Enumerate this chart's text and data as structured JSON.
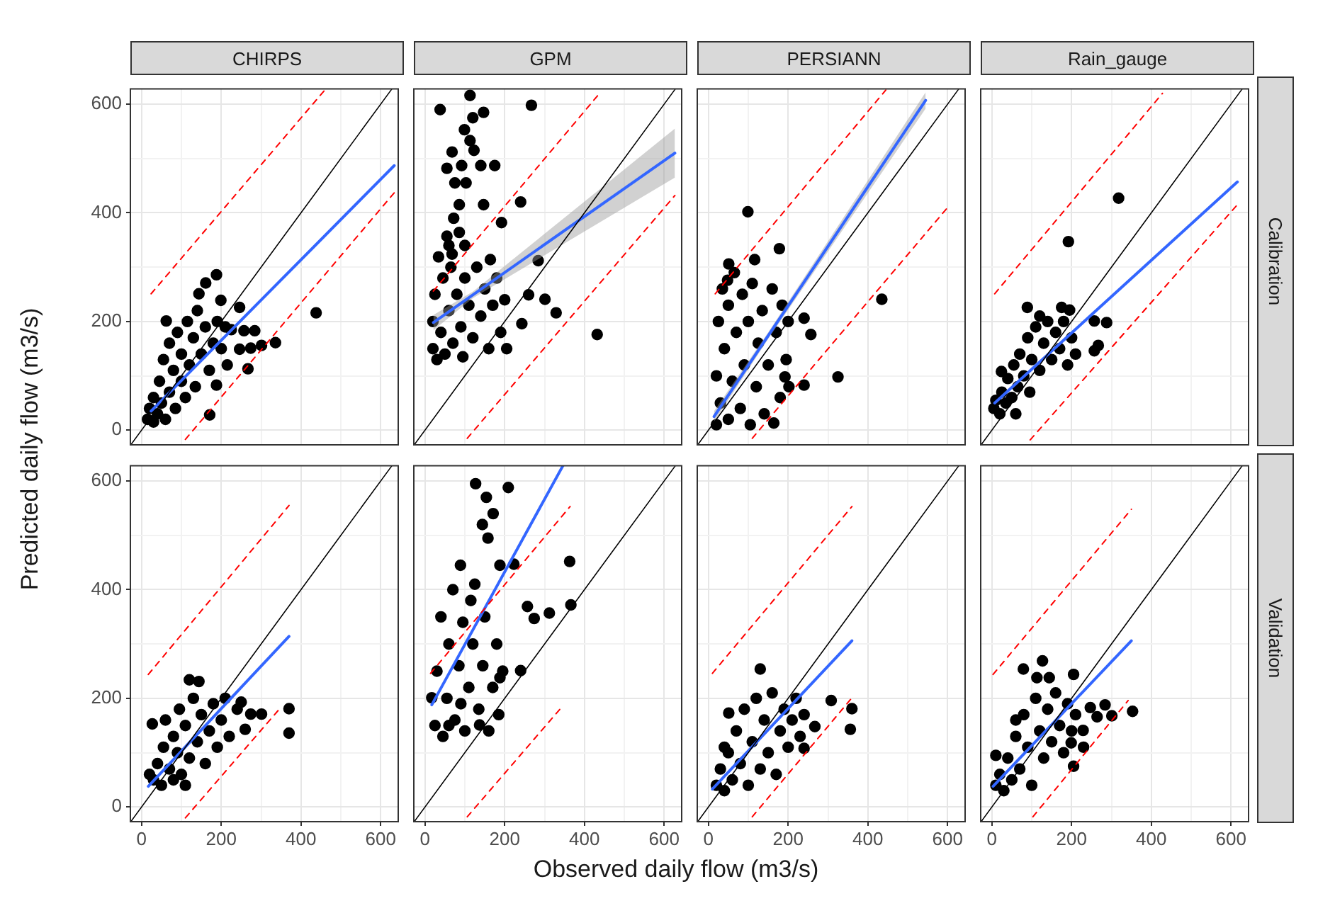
{
  "chart_data": [
    {
      "type": "scatter",
      "title": "CHIRPS",
      "ylabel": "Predicted daily flow (m3/s)",
      "xlim": [
        -28,
        644
      ],
      "ylim": [
        -27,
        628
      ],
      "xticks": [
        0,
        {
          "value": 100,
          "label": null
        },
        200,
        {
          "value": 300,
          "label": null
        },
        400,
        {
          "value": 500,
          "label": null
        },
        600
      ],
      "yticks": [
        0,
        {
          "value": 100,
          "label": null
        },
        200,
        {
          "value": 300,
          "label": null
        },
        400,
        {
          "value": 500,
          "label": null
        },
        600
      ],
      "grid": true,
      "tick_labels": "y",
      "series": [
        {
          "marker": "circle",
          "color": "#000000",
          "x": [
            15,
            20,
            30,
            30,
            40,
            45,
            50,
            55,
            60,
            70,
            70,
            80,
            85,
            90,
            100,
            100,
            110,
            115,
            120,
            130,
            135,
            140,
            150,
            160,
            170,
            180,
            190,
            200,
            210,
            215,
            225,
            438,
            188,
            161,
            144,
            199,
            246,
            62,
            257,
            284,
            336,
            301,
            246,
            274,
            267,
            188,
            171
          ],
          "values": [
            20,
            40,
            15,
            60,
            30,
            90,
            50,
            130,
            20,
            70,
            160,
            110,
            40,
            180,
            90,
            140,
            60,
            200,
            120,
            170,
            80,
            220,
            140,
            190,
            110,
            160,
            200,
            150,
            190,
            120,
            185,
            216,
            286,
            271,
            251,
            239,
            226,
            201,
            183,
            183,
            161,
            156,
            149,
            151,
            113,
            83,
            28
          ]
        },
        {
          "type": "line",
          "color": "#3366ff",
          "line_style": "solid",
          "x": [
            24,
            634
          ],
          "values": [
            35,
            487
          ]
        },
        {
          "type": "line",
          "color": "#000000",
          "line_style": "solid",
          "x": [
            -27,
            628
          ],
          "values": [
            -27,
            628
          ]
        },
        {
          "type": "line",
          "color": "#ff0000",
          "line_style": "dashed",
          "x": [
            24,
            462
          ],
          "values": [
            251,
            628
          ]
        },
        {
          "type": "line",
          "color": "#ff0000",
          "line_style": "dashed",
          "x": [
            110,
            634
          ],
          "values": [
            -17,
            437
          ]
        }
      ]
    },
    {
      "type": "scatter",
      "title": "GPM",
      "xlim": [
        -28,
        644
      ],
      "ylim": [
        -27,
        628
      ],
      "xticks": [
        0,
        {
          "value": 100,
          "label": null
        },
        200,
        {
          "value": 300,
          "label": null
        },
        400,
        {
          "value": 500,
          "label": null
        },
        600
      ],
      "yticks": [
        0,
        {
          "value": 100,
          "label": null
        },
        200,
        {
          "value": 300,
          "label": null
        },
        400,
        {
          "value": 500,
          "label": null
        },
        600
      ],
      "grid": true,
      "tick_labels": false,
      "series": [
        {
          "marker": "circle",
          "color": "#000000",
          "x": [
            20,
            20,
            25,
            30,
            40,
            45,
            50,
            60,
            65,
            70,
            80,
            90,
            95,
            100,
            110,
            120,
            130,
            140,
            150,
            160,
            170,
            180,
            190,
            200,
            205,
            60,
            100,
            38,
            267,
            113,
            120,
            147,
            99,
            113,
            68,
            123,
            55,
            92,
            140,
            175,
            75,
            103,
            86,
            147,
            240,
            72,
            192,
            55,
            86,
            34,
            68,
            164,
            284,
            260,
            301,
            329,
            243,
            432
          ],
          "values": [
            150,
            200,
            250,
            130,
            180,
            280,
            140,
            220,
            300,
            160,
            250,
            190,
            135,
            280,
            230,
            170,
            300,
            210,
            260,
            150,
            230,
            280,
            180,
            240,
            150,
            340,
            340,
            590,
            598,
            616,
            575,
            585,
            553,
            533,
            512,
            515,
            482,
            487,
            487,
            487,
            455,
            455,
            415,
            415,
            420,
            390,
            382,
            357,
            364,
            319,
            324,
            314,
            312,
            249,
            241,
            216,
            196,
            176
          ]
        },
        {
          "type": "line",
          "color": "#3366ff",
          "line_style": "solid",
          "x": [
            21,
            120,
            627
          ],
          "values": [
            198,
            249,
            510
          ],
          "lower": [
            184,
            243,
            465
          ],
          "upper": [
            212,
            255,
            555
          ]
        },
        {
          "type": "line",
          "color": "#000000",
          "line_style": "solid",
          "x": [
            -27,
            628
          ],
          "values": [
            -27,
            628
          ]
        },
        {
          "type": "line",
          "color": "#ff0000",
          "line_style": "dashed",
          "x": [
            21,
            438
          ],
          "values": [
            256,
            620
          ]
        },
        {
          "type": "line",
          "color": "#ff0000",
          "line_style": "dashed",
          "x": [
            106,
            627
          ],
          "values": [
            -15,
            432
          ]
        }
      ]
    },
    {
      "type": "scatter",
      "title": "PERSIANN",
      "xlim": [
        -28,
        644
      ],
      "ylim": [
        -27,
        628
      ],
      "xticks": [
        0,
        {
          "value": 100,
          "label": null
        },
        200,
        {
          "value": 300,
          "label": null
        },
        400,
        {
          "value": 500,
          "label": null
        },
        600
      ],
      "yticks": [
        0,
        {
          "value": 100,
          "label": null
        },
        200,
        {
          "value": 300,
          "label": null
        },
        400,
        {
          "value": 500,
          "label": null
        },
        600
      ],
      "grid": true,
      "tick_labels": false,
      "series": [
        {
          "marker": "circle",
          "color": "#000000",
          "x": [
            20,
            20,
            25,
            30,
            35,
            40,
            50,
            50,
            60,
            65,
            70,
            80,
            85,
            90,
            100,
            105,
            110,
            120,
            125,
            135,
            140,
            150,
            160,
            170,
            180,
            185,
            195,
            200,
            99,
            178,
            51,
            116,
            48,
            240,
            257,
            435,
            325,
            240,
            202,
            164,
            192
          ],
          "values": [
            10,
            100,
            200,
            50,
            260,
            150,
            20,
            230,
            90,
            290,
            180,
            40,
            250,
            120,
            200,
            10,
            270,
            80,
            160,
            220,
            30,
            120,
            260,
            180,
            60,
            230,
            130,
            200,
            402,
            334,
            306,
            314,
            276,
            206,
            176,
            241,
            98,
            83,
            80,
            13,
            98
          ]
        },
        {
          "type": "line",
          "color": "#3366ff",
          "line_style": "solid",
          "x": [
            14,
            150,
            545
          ],
          "values": [
            25,
            174,
            607
          ],
          "lower": [
            15,
            168,
            592
          ],
          "upper": [
            35,
            180,
            622
          ]
        },
        {
          "type": "line",
          "color": "#000000",
          "line_style": "solid",
          "x": [
            -27,
            628
          ],
          "values": [
            -27,
            628
          ]
        },
        {
          "type": "line",
          "color": "#ff0000",
          "line_style": "dashed",
          "x": [
            17,
            445
          ],
          "values": [
            251,
            626
          ]
        },
        {
          "type": "line",
          "color": "#ff0000",
          "line_style": "dashed",
          "x": [
            110,
            606
          ],
          "values": [
            -15,
            415
          ]
        }
      ]
    },
    {
      "type": "scatter",
      "title": "Rain_gauge",
      "y2label": "Calibration",
      "xlim": [
        -28,
        644
      ],
      "ylim": [
        -27,
        628
      ],
      "xticks": [
        0,
        {
          "value": 100,
          "label": null
        },
        200,
        {
          "value": 300,
          "label": null
        },
        400,
        {
          "value": 500,
          "label": null
        },
        600
      ],
      "yticks": [
        0,
        {
          "value": 100,
          "label": null
        },
        200,
        {
          "value": 300,
          "label": null
        },
        400,
        {
          "value": 500,
          "label": null
        },
        600
      ],
      "grid": true,
      "tick_labels": false,
      "series": [
        {
          "marker": "circle",
          "color": "#000000",
          "x": [
            5,
            10,
            20,
            25,
            35,
            40,
            50,
            55,
            65,
            70,
            80,
            90,
            95,
            100,
            110,
            120,
            130,
            140,
            150,
            160,
            170,
            180,
            190,
            200,
            210,
            120,
            60,
            318,
            192,
            89,
            175,
            195,
            257,
            288,
            267,
            257,
            24
          ],
          "values": [
            40,
            55,
            30,
            70,
            50,
            95,
            60,
            120,
            80,
            140,
            100,
            170,
            70,
            130,
            190,
            110,
            160,
            200,
            130,
            180,
            150,
            200,
            120,
            170,
            140,
            210,
            30,
            427,
            347,
            226,
            226,
            221,
            201,
            198,
            156,
            146,
            108
          ]
        },
        {
          "type": "line",
          "color": "#3366ff",
          "line_style": "solid",
          "x": [
            7,
            616
          ],
          "values": [
            50,
            457
          ]
        },
        {
          "type": "line",
          "color": "#000000",
          "line_style": "solid",
          "x": [
            -27,
            628
          ],
          "values": [
            -27,
            628
          ]
        },
        {
          "type": "line",
          "color": "#ff0000",
          "line_style": "dashed",
          "x": [
            7,
            428
          ],
          "values": [
            251,
            620
          ]
        },
        {
          "type": "line",
          "color": "#ff0000",
          "line_style": "dashed",
          "x": [
            96,
            616
          ],
          "values": [
            -18,
            415
          ]
        }
      ]
    },
    {
      "type": "scatter",
      "xlim": [
        -28,
        644
      ],
      "ylim": [
        -27,
        628
      ],
      "xticks": [
        0,
        {
          "value": 100,
          "label": null
        },
        200,
        {
          "value": 300,
          "label": null
        },
        400,
        {
          "value": 500,
          "label": null
        },
        600
      ],
      "yticks": [
        0,
        {
          "value": 100,
          "label": null
        },
        200,
        {
          "value": 300,
          "label": null
        },
        400,
        {
          "value": 500,
          "label": null
        },
        600
      ],
      "grid": true,
      "series": [
        {
          "marker": "circle",
          "color": "#000000",
          "x": [
            20,
            30,
            40,
            50,
            55,
            60,
            70,
            80,
            90,
            95,
            100,
            110,
            120,
            130,
            140,
            150,
            160,
            170,
            180,
            190,
            200,
            210,
            220,
            240,
            80,
            110,
            27,
            120,
            144,
            250,
            274,
            301,
            370,
            370,
            260
          ],
          "values": [
            60,
            50,
            80,
            40,
            110,
            160,
            70,
            130,
            100,
            180,
            60,
            150,
            90,
            200,
            120,
            170,
            80,
            140,
            190,
            110,
            160,
            200,
            130,
            180,
            50,
            40,
            153,
            234,
            231,
            193,
            171,
            171,
            181,
            136,
            143
          ]
        },
        {
          "type": "line",
          "color": "#3366ff",
          "line_style": "solid",
          "x": [
            17,
            370
          ],
          "values": [
            38,
            314
          ]
        },
        {
          "type": "line",
          "color": "#000000",
          "line_style": "solid",
          "x": [
            -27,
            628
          ],
          "values": [
            -27,
            628
          ]
        },
        {
          "type": "line",
          "color": "#ff0000",
          "line_style": "dashed",
          "x": [
            17,
            370
          ],
          "values": [
            244,
            555
          ]
        },
        {
          "type": "line",
          "color": "#ff0000",
          "line_style": "dashed",
          "x": [
            110,
            349
          ],
          "values": [
            -20,
            183
          ]
        }
      ]
    },
    {
      "type": "scatter",
      "xlim": [
        -28,
        644
      ],
      "ylim": [
        -27,
        628
      ],
      "xticks": [
        0,
        {
          "value": 100,
          "label": null
        },
        200,
        {
          "value": 300,
          "label": null
        },
        400,
        {
          "value": 500,
          "label": null
        },
        600
      ],
      "yticks": [
        0,
        {
          "value": 100,
          "label": null
        },
        200,
        {
          "value": 300,
          "label": null
        },
        400,
        {
          "value": 500,
          "label": null
        },
        600
      ],
      "grid": true,
      "tick_labels": "x",
      "xlabel": "Observed daily flow (m3/s)",
      "series": [
        {
          "marker": "circle",
          "color": "#000000",
          "x": [
            25,
            30,
            40,
            45,
            55,
            60,
            70,
            75,
            85,
            95,
            100,
            110,
            120,
            125,
            135,
            145,
            150,
            160,
            170,
            180,
            185,
            195,
            60,
            90,
            115,
            127,
            209,
            154,
            171,
            144,
            158,
            89,
            188,
            363,
            223,
            257,
            274,
            312,
            366,
            240,
            188,
            137,
            17
          ],
          "values": [
            150,
            250,
            350,
            130,
            200,
            300,
            400,
            160,
            260,
            340,
            140,
            220,
            300,
            410,
            180,
            260,
            350,
            140,
            220,
            300,
            170,
            250,
            150,
            190,
            380,
            595,
            588,
            570,
            540,
            520,
            495,
            445,
            445,
            452,
            447,
            369,
            347,
            357,
            372,
            251,
            238,
            151,
            201
          ]
        },
        {
          "type": "line",
          "color": "#3366ff",
          "line_style": "solid",
          "x": [
            17,
            346
          ],
          "values": [
            188,
            628
          ]
        },
        {
          "type": "line",
          "color": "#000000",
          "line_style": "solid",
          "x": [
            -27,
            628
          ],
          "values": [
            -27,
            628
          ]
        },
        {
          "type": "line",
          "color": "#ff0000",
          "line_style": "dashed",
          "x": [
            14,
            364
          ],
          "values": [
            246,
            553
          ]
        },
        {
          "type": "line",
          "color": "#ff0000",
          "line_style": "dashed",
          "x": [
            106,
            342
          ],
          "values": [
            -18,
            183
          ]
        }
      ]
    },
    {
      "type": "scatter",
      "xlim": [
        -28,
        644
      ],
      "ylim": [
        -27,
        628
      ],
      "xticks": [
        0,
        {
          "value": 100,
          "label": null
        },
        200,
        {
          "value": 300,
          "label": null
        },
        400,
        {
          "value": 500,
          "label": null
        },
        600
      ],
      "yticks": [
        0,
        {
          "value": 100,
          "label": null
        },
        200,
        {
          "value": 300,
          "label": null
        },
        400,
        {
          "value": 500,
          "label": null
        },
        600
      ],
      "grid": true,
      "tick_labels": "x",
      "series": [
        {
          "marker": "circle",
          "color": "#000000",
          "x": [
            20,
            30,
            40,
            50,
            60,
            70,
            80,
            90,
            100,
            110,
            120,
            130,
            140,
            150,
            160,
            170,
            180,
            190,
            200,
            210,
            220,
            240,
            40,
            230,
            130,
            308,
            360,
            356,
            267,
            240,
            51
          ],
          "values": [
            40,
            70,
            30,
            100,
            50,
            140,
            80,
            180,
            40,
            120,
            200,
            70,
            160,
            100,
            210,
            60,
            140,
            180,
            110,
            160,
            200,
            170,
            110,
            130,
            254,
            196,
            181,
            143,
            148,
            108,
            173
          ]
        },
        {
          "type": "line",
          "color": "#3366ff",
          "line_style": "solid",
          "x": [
            10,
            360
          ],
          "values": [
            33,
            306
          ]
        },
        {
          "type": "line",
          "color": "#000000",
          "line_style": "solid",
          "x": [
            -27,
            628
          ],
          "values": [
            -27,
            628
          ]
        },
        {
          "type": "line",
          "color": "#ff0000",
          "line_style": "dashed",
          "x": [
            10,
            360
          ],
          "values": [
            246,
            553
          ]
        },
        {
          "type": "line",
          "color": "#ff0000",
          "line_style": "dashed",
          "x": [
            110,
            360
          ],
          "values": [
            -18,
            201
          ]
        }
      ]
    },
    {
      "type": "scatter",
      "y2label": "Validation",
      "xlim": [
        -28,
        644
      ],
      "ylim": [
        -27,
        628
      ],
      "xticks": [
        0,
        {
          "value": 100,
          "label": null
        },
        200,
        {
          "value": 300,
          "label": null
        },
        400,
        {
          "value": 500,
          "label": null
        },
        600
      ],
      "yticks": [
        0,
        {
          "value": 100,
          "label": null
        },
        200,
        {
          "value": 300,
          "label": null
        },
        400,
        {
          "value": 500,
          "label": null
        },
        600
      ],
      "grid": true,
      "tick_labels": "x",
      "series": [
        {
          "marker": "circle",
          "color": "#000000",
          "x": [
            10,
            20,
            30,
            40,
            50,
            60,
            70,
            80,
            90,
            100,
            110,
            120,
            130,
            140,
            150,
            160,
            170,
            180,
            190,
            200,
            210,
            60,
            230,
            127,
            79,
            113,
            144,
            205,
            247,
            284,
            264,
            301,
            353,
            229,
            199,
            205,
            10
          ],
          "values": [
            40,
            60,
            30,
            90,
            50,
            130,
            70,
            170,
            110,
            40,
            200,
            140,
            90,
            180,
            120,
            210,
            150,
            100,
            190,
            140,
            170,
            160,
            110,
            269,
            254,
            238,
            238,
            244,
            183,
            188,
            166,
            168,
            176,
            141,
            118,
            75,
            95
          ]
        },
        {
          "type": "line",
          "color": "#3366ff",
          "line_style": "solid",
          "x": [
            3,
            350
          ],
          "values": [
            38,
            306
          ]
        },
        {
          "type": "line",
          "color": "#000000",
          "line_style": "solid",
          "x": [
            -27,
            628
          ],
          "values": [
            -27,
            628
          ]
        },
        {
          "type": "line",
          "color": "#ff0000",
          "line_style": "dashed",
          "x": [
            3,
            350
          ],
          "values": [
            244,
            548
          ]
        },
        {
          "type": "line",
          "color": "#ff0000",
          "line_style": "dashed",
          "x": [
            103,
            342
          ],
          "values": [
            -18,
            196
          ]
        }
      ]
    }
  ]
}
